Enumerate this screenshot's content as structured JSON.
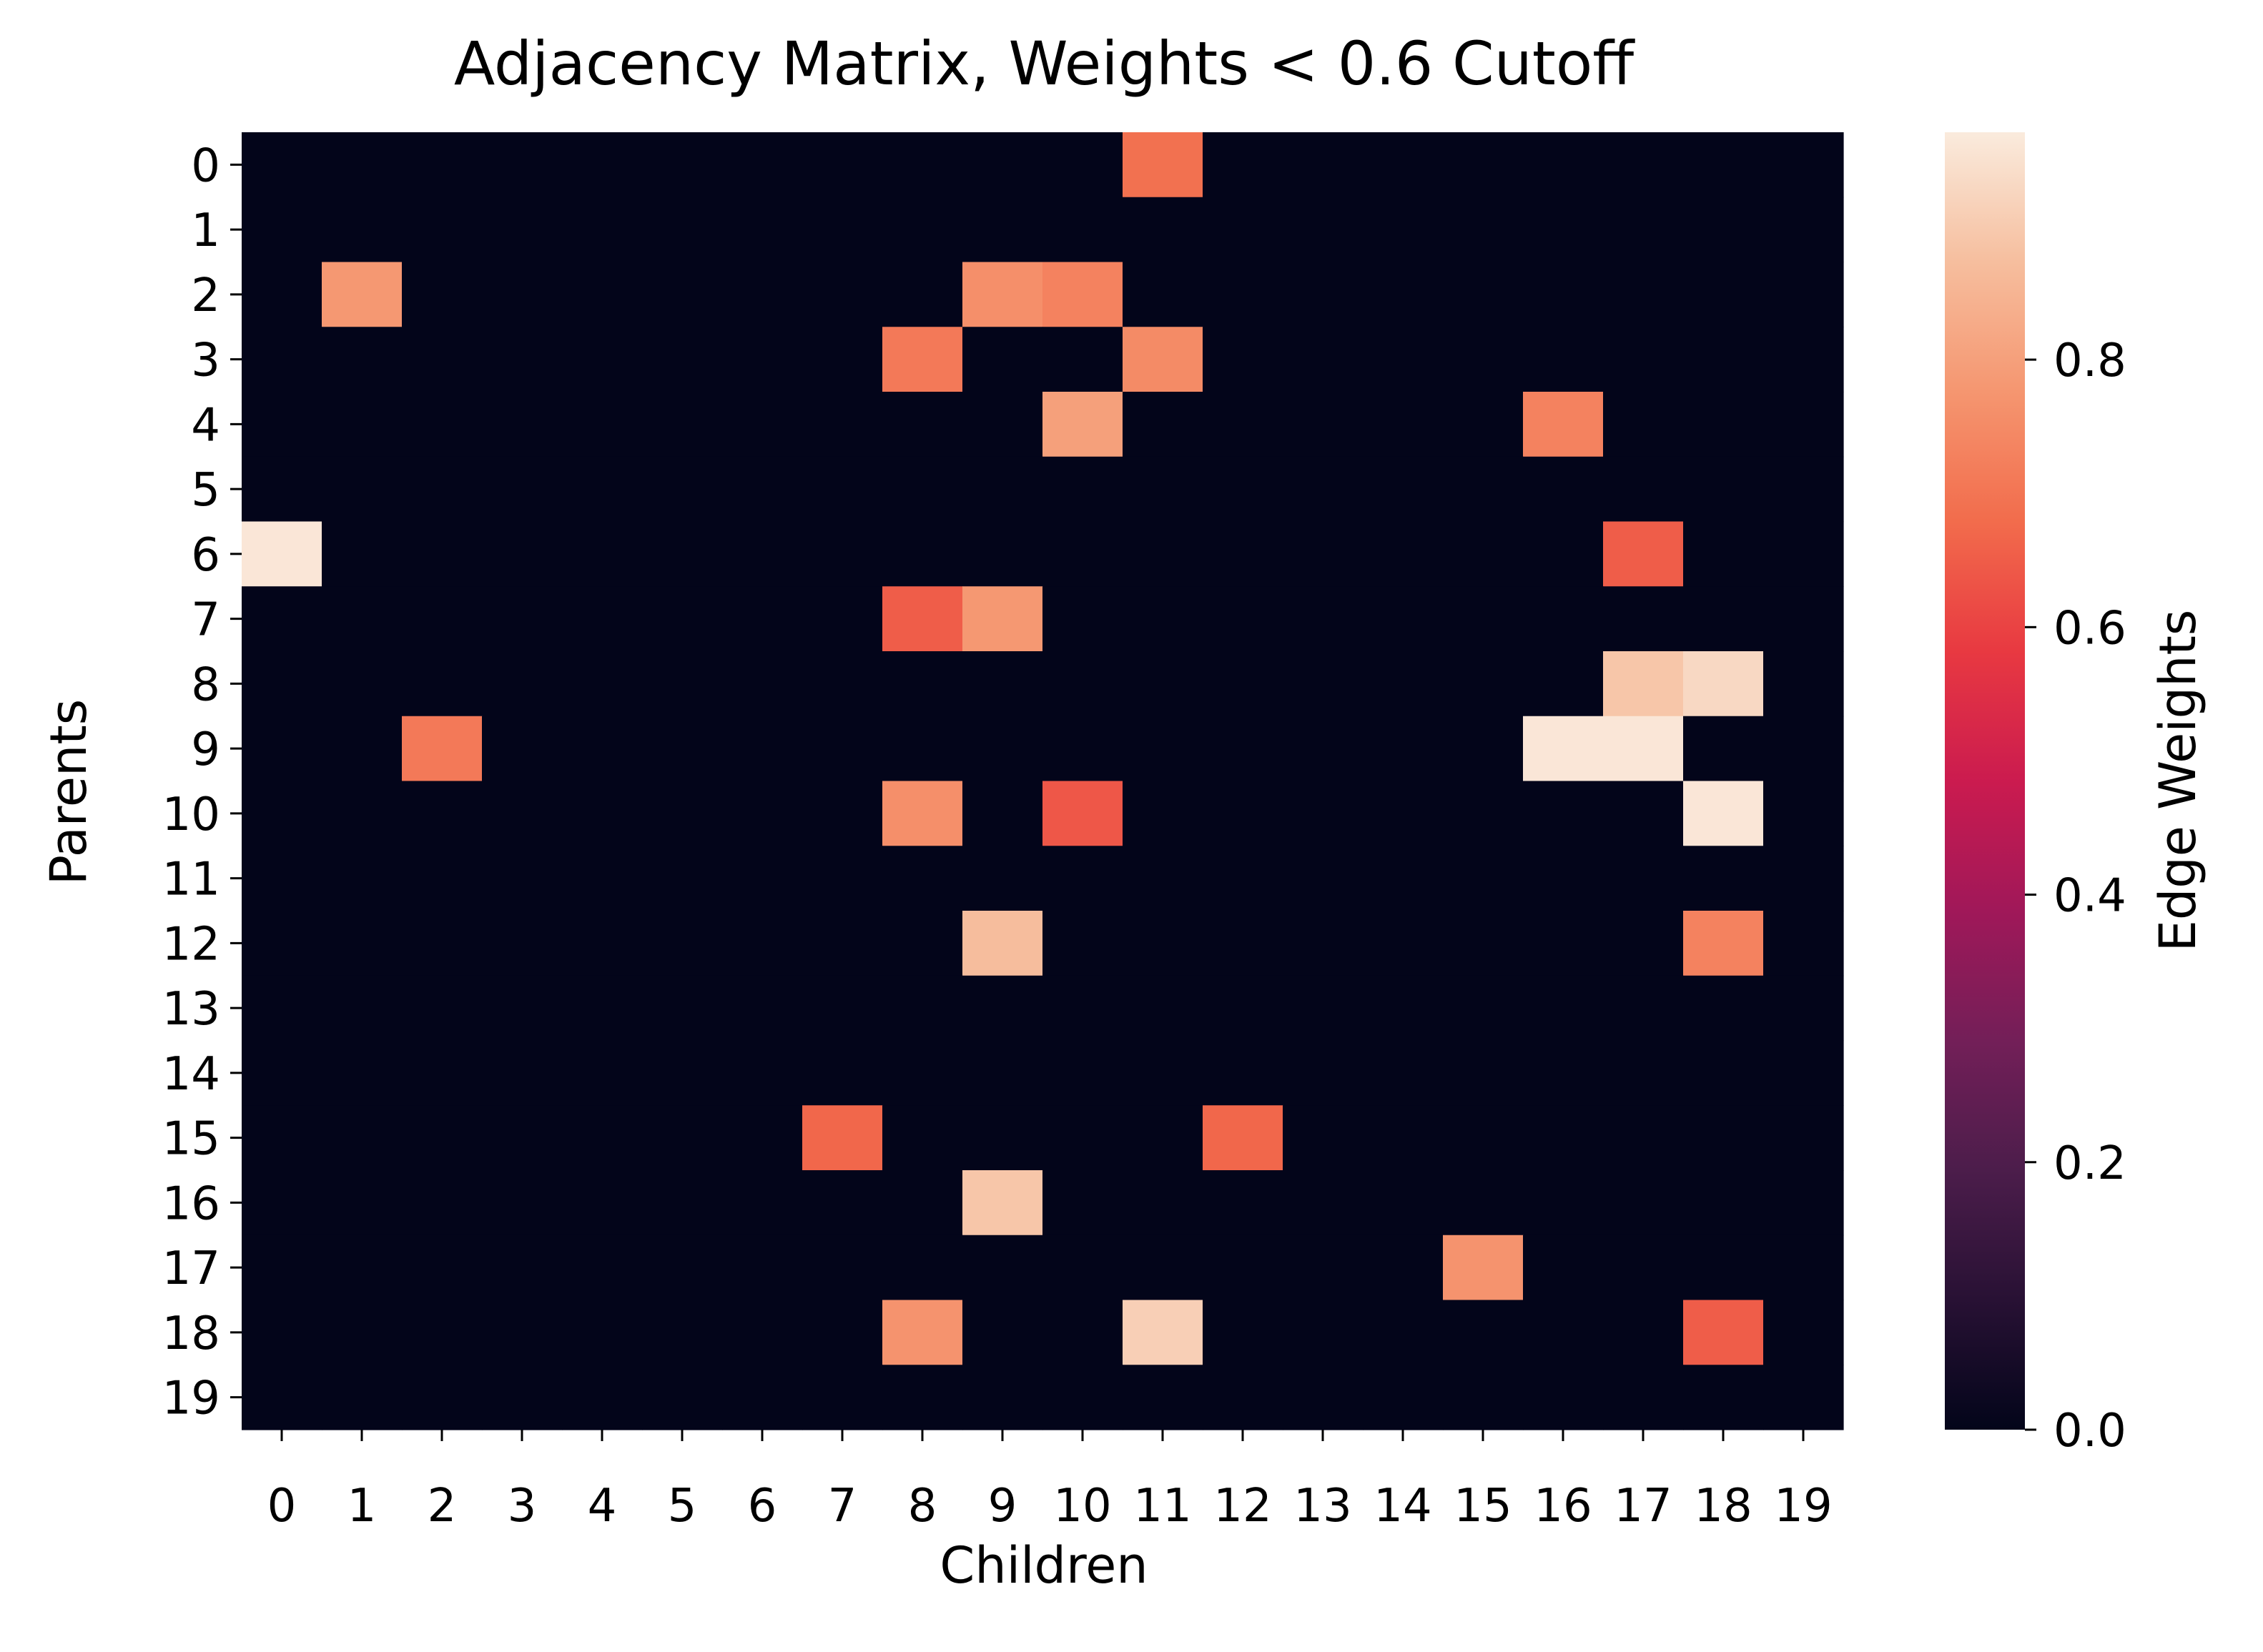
{
  "chart_data": {
    "type": "heatmap",
    "title": "Adjacency Matrix, Weights < 0.6 Cutoff",
    "xlabel": "Children",
    "ylabel": "Parents",
    "x_tick_labels": [
      "0",
      "1",
      "2",
      "3",
      "4",
      "5",
      "6",
      "7",
      "8",
      "9",
      "10",
      "11",
      "12",
      "13",
      "14",
      "15",
      "16",
      "17",
      "18",
      "19"
    ],
    "y_tick_labels": [
      "0",
      "1",
      "2",
      "3",
      "4",
      "5",
      "6",
      "7",
      "8",
      "9",
      "10",
      "11",
      "12",
      "13",
      "14",
      "15",
      "16",
      "17",
      "18",
      "19"
    ],
    "colorbar": {
      "label": "Edge Weights",
      "range": [
        0,
        0.97
      ],
      "ticks": [
        0.0,
        0.2,
        0.4,
        0.6,
        0.8
      ],
      "tick_labels": [
        "0.0",
        "0.2",
        "0.4",
        "0.6",
        "0.8"
      ]
    },
    "default_value": 0,
    "cells": [
      {
        "parent": 0,
        "child": 11,
        "value": 0.69
      },
      {
        "parent": 2,
        "child": 1,
        "value": 0.78
      },
      {
        "parent": 2,
        "child": 9,
        "value": 0.76
      },
      {
        "parent": 2,
        "child": 10,
        "value": 0.73
      },
      {
        "parent": 3,
        "child": 8,
        "value": 0.71
      },
      {
        "parent": 3,
        "child": 11,
        "value": 0.75
      },
      {
        "parent": 4,
        "child": 10,
        "value": 0.8
      },
      {
        "parent": 4,
        "child": 16,
        "value": 0.73
      },
      {
        "parent": 6,
        "child": 0,
        "value": 0.96
      },
      {
        "parent": 6,
        "child": 17,
        "value": 0.65
      },
      {
        "parent": 7,
        "child": 8,
        "value": 0.65
      },
      {
        "parent": 7,
        "child": 9,
        "value": 0.78
      },
      {
        "parent": 8,
        "child": 17,
        "value": 0.89
      },
      {
        "parent": 8,
        "child": 18,
        "value": 0.93
      },
      {
        "parent": 9,
        "child": 2,
        "value": 0.71
      },
      {
        "parent": 9,
        "child": 16,
        "value": 0.96
      },
      {
        "parent": 9,
        "child": 17,
        "value": 0.96
      },
      {
        "parent": 10,
        "child": 8,
        "value": 0.76
      },
      {
        "parent": 10,
        "child": 10,
        "value": 0.64
      },
      {
        "parent": 10,
        "child": 18,
        "value": 0.96
      },
      {
        "parent": 12,
        "child": 9,
        "value": 0.87
      },
      {
        "parent": 12,
        "child": 18,
        "value": 0.73
      },
      {
        "parent": 15,
        "child": 7,
        "value": 0.67
      },
      {
        "parent": 15,
        "child": 12,
        "value": 0.67
      },
      {
        "parent": 16,
        "child": 9,
        "value": 0.89
      },
      {
        "parent": 17,
        "child": 15,
        "value": 0.77
      },
      {
        "parent": 18,
        "child": 8,
        "value": 0.77
      },
      {
        "parent": 18,
        "child": 11,
        "value": 0.91
      },
      {
        "parent": 18,
        "child": 18,
        "value": 0.65
      }
    ]
  }
}
